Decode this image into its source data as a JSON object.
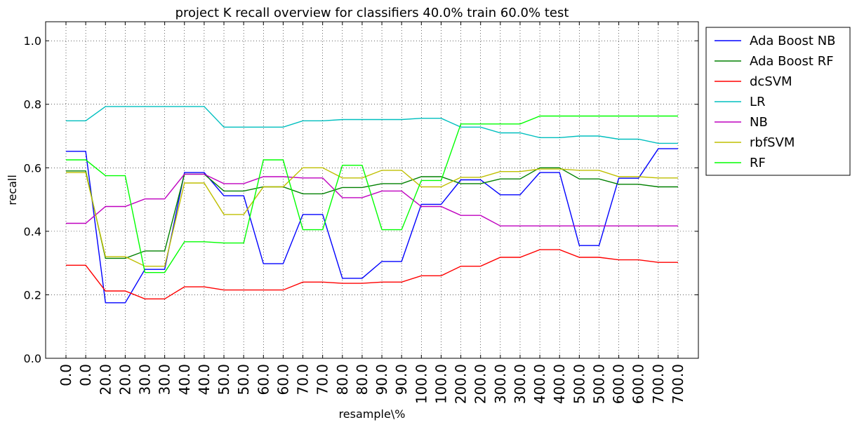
{
  "chart_data": {
    "type": "line",
    "title": "project K recall overview for classifiers 40.0% train 60.0% test",
    "xlabel": "resample\\%",
    "ylabel": "recall",
    "ylim": [
      0.0,
      1.06
    ],
    "yticks": [
      "0.0",
      "0.2",
      "0.4",
      "0.6",
      "0.8",
      "1.0"
    ],
    "categories": [
      "0.0",
      "0.0",
      "20.0",
      "20.0",
      "30.0",
      "30.0",
      "40.0",
      "40.0",
      "50.0",
      "50.0",
      "60.0",
      "60.0",
      "70.0",
      "70.0",
      "80.0",
      "80.0",
      "90.0",
      "90.0",
      "100.0",
      "100.0",
      "200.0",
      "200.0",
      "300.0",
      "300.0",
      "400.0",
      "400.0",
      "500.0",
      "500.0",
      "600.0",
      "600.0",
      "700.0",
      "700.0"
    ],
    "grid": true,
    "legend_position": "outside-right-top",
    "series": [
      {
        "name": "Ada Boost NB",
        "color": "#0000ff",
        "values": [
          0.652,
          0.652,
          0.175,
          0.175,
          0.28,
          0.28,
          0.585,
          0.585,
          0.512,
          0.512,
          0.298,
          0.298,
          0.453,
          0.453,
          0.252,
          0.252,
          0.305,
          0.305,
          0.485,
          0.485,
          0.562,
          0.562,
          0.515,
          0.515,
          0.585,
          0.585,
          0.355,
          0.355,
          0.567,
          0.567,
          0.66,
          0.66
        ]
      },
      {
        "name": "Ada Boost RF",
        "color": "#008000",
        "values": [
          0.59,
          0.59,
          0.315,
          0.315,
          0.338,
          0.338,
          0.58,
          0.58,
          0.527,
          0.527,
          0.54,
          0.54,
          0.518,
          0.518,
          0.538,
          0.538,
          0.55,
          0.55,
          0.572,
          0.572,
          0.55,
          0.55,
          0.565,
          0.565,
          0.6,
          0.6,
          0.565,
          0.565,
          0.548,
          0.548,
          0.54,
          0.54
        ]
      },
      {
        "name": "dcSVM",
        "color": "#ff0000",
        "values": [
          0.293,
          0.293,
          0.212,
          0.212,
          0.187,
          0.187,
          0.225,
          0.225,
          0.215,
          0.215,
          0.215,
          0.215,
          0.24,
          0.24,
          0.236,
          0.236,
          0.24,
          0.24,
          0.26,
          0.26,
          0.29,
          0.29,
          0.318,
          0.318,
          0.342,
          0.342,
          0.318,
          0.318,
          0.31,
          0.31,
          0.302,
          0.302
        ]
      },
      {
        "name": "LR",
        "color": "#00bfbf",
        "values": [
          0.748,
          0.748,
          0.793,
          0.793,
          0.793,
          0.793,
          0.793,
          0.793,
          0.728,
          0.728,
          0.728,
          0.728,
          0.748,
          0.748,
          0.752,
          0.752,
          0.752,
          0.752,
          0.756,
          0.756,
          0.728,
          0.728,
          0.71,
          0.71,
          0.695,
          0.695,
          0.7,
          0.7,
          0.69,
          0.69,
          0.677,
          0.677
        ]
      },
      {
        "name": "NB",
        "color": "#bf00bf",
        "values": [
          0.425,
          0.425,
          0.478,
          0.478,
          0.502,
          0.502,
          0.58,
          0.58,
          0.55,
          0.55,
          0.572,
          0.572,
          0.568,
          0.568,
          0.506,
          0.506,
          0.527,
          0.527,
          0.478,
          0.478,
          0.45,
          0.45,
          0.417,
          0.417,
          0.417,
          0.417,
          0.417,
          0.417,
          0.417,
          0.417,
          0.417,
          0.417
        ]
      },
      {
        "name": "rbfSVM",
        "color": "#bfbf00",
        "values": [
          0.585,
          0.585,
          0.32,
          0.32,
          0.29,
          0.29,
          0.552,
          0.552,
          0.453,
          0.453,
          0.54,
          0.54,
          0.6,
          0.6,
          0.568,
          0.568,
          0.592,
          0.592,
          0.54,
          0.54,
          0.57,
          0.57,
          0.588,
          0.588,
          0.596,
          0.596,
          0.592,
          0.592,
          0.572,
          0.572,
          0.568,
          0.568
        ]
      },
      {
        "name": "RF",
        "color": "#00ff00",
        "values": [
          0.625,
          0.625,
          0.575,
          0.575,
          0.27,
          0.27,
          0.367,
          0.367,
          0.363,
          0.363,
          0.625,
          0.625,
          0.405,
          0.405,
          0.608,
          0.608,
          0.405,
          0.405,
          0.56,
          0.56,
          0.738,
          0.738,
          0.738,
          0.738,
          0.763,
          0.763,
          0.763,
          0.763,
          0.763,
          0.763,
          0.763,
          0.763
        ]
      }
    ]
  }
}
